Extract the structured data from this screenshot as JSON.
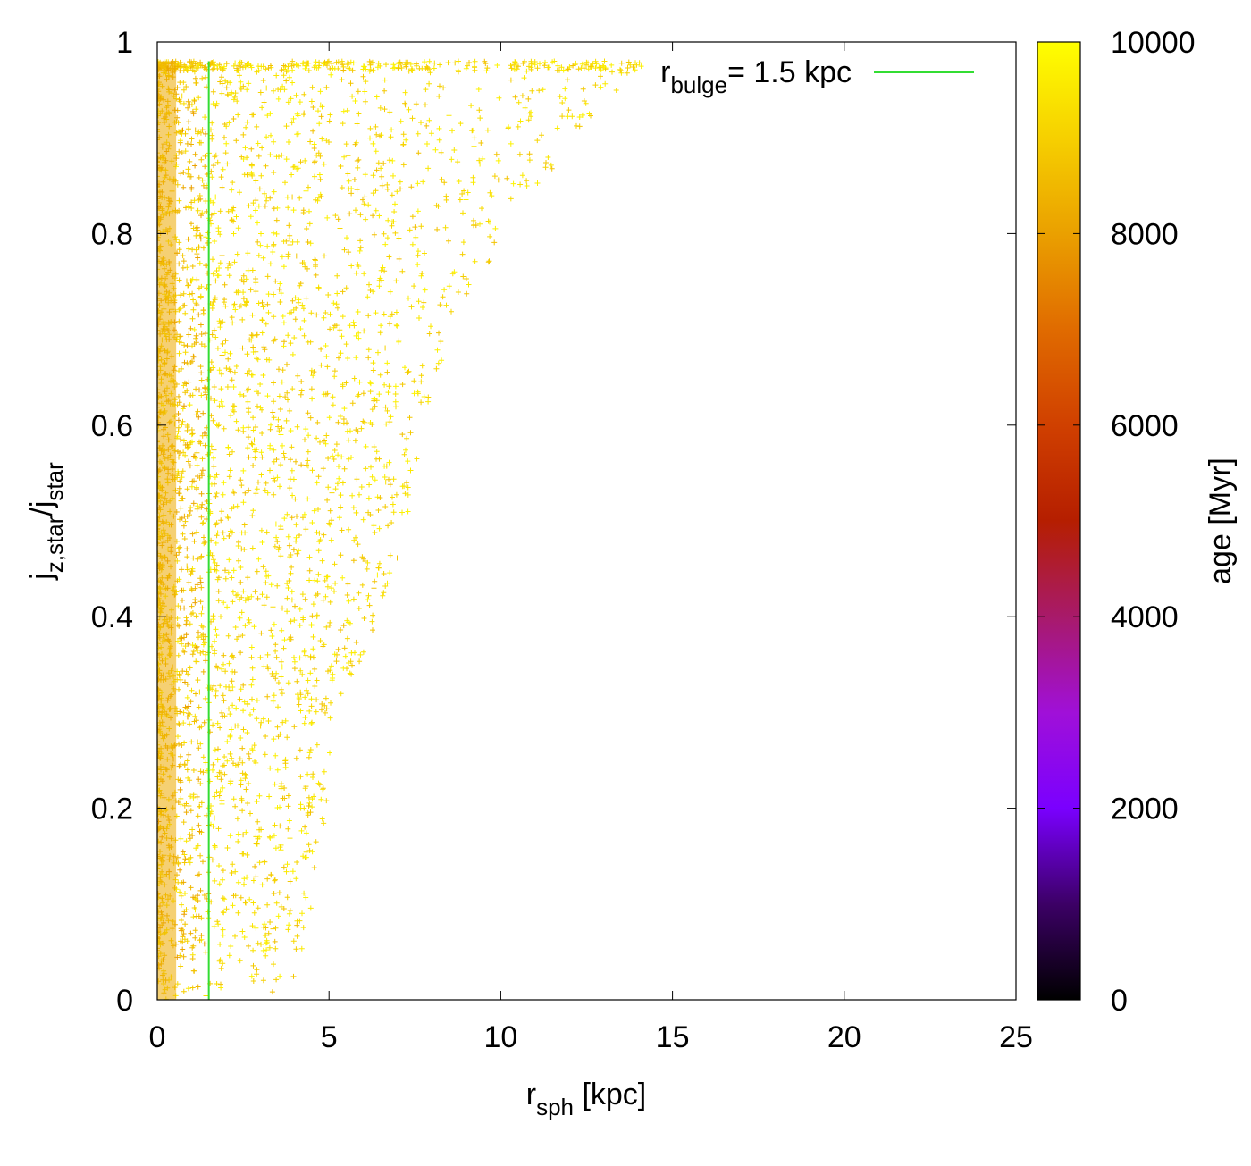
{
  "chart_data": {
    "type": "scatter",
    "xlabel": {
      "main": "r",
      "sub": "sph",
      "unit": " [kpc]"
    },
    "ylabel": {
      "p1": "j",
      "s1": "z,star",
      "p2": "/j",
      "s2": "star"
    },
    "xlim": [
      0,
      25
    ],
    "ylim": [
      0,
      1
    ],
    "x_ticks": [
      0,
      5,
      10,
      15,
      20,
      25
    ],
    "y_ticks": [
      0,
      0.2,
      0.4,
      0.6,
      0.8,
      1
    ],
    "y_tick_labels": [
      "0",
      "0.2",
      "0.4",
      "0.6",
      "0.8",
      "1"
    ],
    "grid": false,
    "marker": "+",
    "point_cloud": {
      "y_max": 0.98,
      "note_dense_below_r": 1.5,
      "envelope": [
        {
          "j": 0.0,
          "r_max": 3.8
        },
        {
          "j": 0.1,
          "r_max": 4.6
        },
        {
          "j": 0.2,
          "r_max": 5.0
        },
        {
          "j": 0.3,
          "r_max": 5.2
        },
        {
          "j": 0.4,
          "r_max": 6.5
        },
        {
          "j": 0.5,
          "r_max": 7.3
        },
        {
          "j": 0.6,
          "r_max": 7.8
        },
        {
          "j": 0.7,
          "r_max": 8.5
        },
        {
          "j": 0.8,
          "r_max": 10.3
        },
        {
          "j": 0.9,
          "r_max": 12.2
        },
        {
          "j": 0.98,
          "r_max": 14.3
        }
      ]
    },
    "reference_line": {
      "label": "= 1.5 kpc",
      "label_main": "r",
      "label_sub": "bulge",
      "x": 1.5,
      "color": "#33dd33"
    },
    "legend_position": "top-right",
    "colorbar": {
      "label": "age [Myr]",
      "min": 0,
      "max": 10000,
      "ticks": [
        0,
        2000,
        4000,
        6000,
        8000,
        10000
      ],
      "palette": [
        "#000000",
        "#3c0066",
        "#7a00ff",
        "#a010d8",
        "#a81a6a",
        "#b51e00",
        "#d04000",
        "#e06b00",
        "#eaa000",
        "#f6d000",
        "#ffff00"
      ]
    },
    "age_range_of_points": [
      8000,
      9800
    ]
  }
}
